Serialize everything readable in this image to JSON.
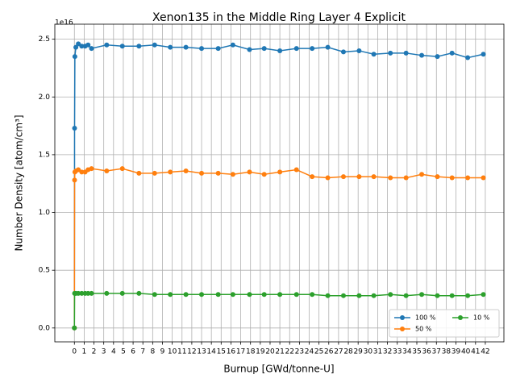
{
  "chart_data": {
    "type": "line",
    "title": "Xenon135 in the Middle Ring Layer 4 Explicit",
    "xlabel": "Burnup [GWd/tonne-U]",
    "ylabel": "Number Density [atom/cm³]",
    "y_offset_label": "1e16",
    "x": [
      0,
      0.02,
      0.05,
      0.15,
      0.4,
      0.75,
      1.1,
      1.4,
      1.75,
      3.3,
      4.9,
      6.6,
      8.2,
      9.8,
      11.4,
      13.0,
      14.7,
      16.2,
      17.9,
      19.4,
      21.0,
      22.7,
      24.3,
      25.9,
      27.5,
      29.1,
      30.6,
      32.3,
      33.9,
      35.5,
      37.1,
      38.6,
      40.2,
      41.8
    ],
    "series": [
      {
        "name": "100 %",
        "color": "#1f77b4",
        "values": [
          0,
          1.73,
          2.35,
          2.43,
          2.46,
          2.44,
          2.44,
          2.45,
          2.42,
          2.45,
          2.44,
          2.44,
          2.45,
          2.43,
          2.43,
          2.42,
          2.42,
          2.45,
          2.41,
          2.42,
          2.4,
          2.42,
          2.42,
          2.43,
          2.39,
          2.4,
          2.37,
          2.38,
          2.38,
          2.36,
          2.35,
          2.38,
          2.34,
          2.37
        ]
      },
      {
        "name": "50 %",
        "color": "#ff7f0e",
        "values": [
          0,
          1.28,
          1.35,
          1.36,
          1.37,
          1.35,
          1.35,
          1.37,
          1.38,
          1.36,
          1.38,
          1.34,
          1.34,
          1.35,
          1.36,
          1.34,
          1.34,
          1.33,
          1.35,
          1.33,
          1.35,
          1.37,
          1.31,
          1.3,
          1.31,
          1.31,
          1.31,
          1.3,
          1.3,
          1.33,
          1.31,
          1.3,
          1.3,
          1.3
        ]
      },
      {
        "name": "10 %",
        "color": "#2ca02c",
        "values": [
          0,
          0.3,
          0.3,
          0.3,
          0.3,
          0.3,
          0.3,
          0.3,
          0.3,
          0.3,
          0.3,
          0.3,
          0.29,
          0.29,
          0.29,
          0.29,
          0.29,
          0.29,
          0.29,
          0.29,
          0.29,
          0.29,
          0.29,
          0.28,
          0.28,
          0.28,
          0.28,
          0.29,
          0.28,
          0.29,
          0.28,
          0.28,
          0.28,
          0.29
        ]
      }
    ],
    "xlim": [
      -2,
      43.9
    ],
    "ylim": [
      -0.12,
      2.63
    ],
    "xticks": [
      0,
      1,
      2,
      3,
      4,
      5,
      6,
      7,
      8,
      9,
      10,
      11,
      12,
      13,
      14,
      15,
      16,
      17,
      18,
      19,
      20,
      21,
      22,
      23,
      24,
      25,
      26,
      27,
      28,
      29,
      30,
      31,
      32,
      33,
      34,
      35,
      36,
      37,
      38,
      39,
      40,
      41,
      42
    ],
    "yticks": [
      {
        "value": 0,
        "label": "0.0"
      },
      0.5,
      {
        "value": 1,
        "label": "1.0"
      },
      1.5,
      {
        "value": 2,
        "label": "2.0"
      },
      2.5
    ],
    "grid": true,
    "legend": "lower right"
  }
}
